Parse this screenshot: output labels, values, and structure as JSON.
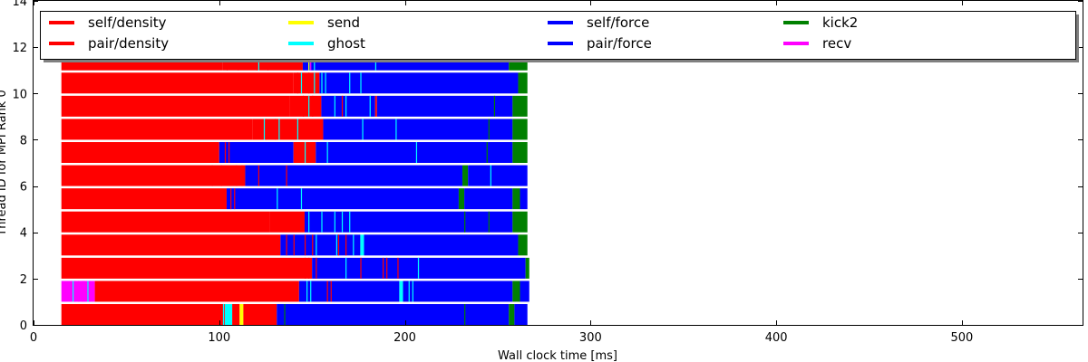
{
  "chart_data": {
    "type": "bar",
    "orientation": "horizontal-timeline",
    "title": "",
    "xlabel": "Wall clock time [ms]",
    "ylabel": "Thread ID for MPI Rank 0",
    "xlim": [
      0,
      565
    ],
    "ylim": [
      0,
      14
    ],
    "xticks": [
      0,
      100,
      200,
      300,
      400,
      500
    ],
    "yticks": [
      0,
      2,
      4,
      6,
      8,
      10,
      12,
      14
    ],
    "grid": false,
    "legend_position": "top, inside plot, 5 columns",
    "legend": [
      {
        "label": "self/density",
        "color": "#ff0000"
      },
      {
        "label": "pair/density",
        "color": "#ff0000"
      },
      {
        "label": "send",
        "color": "#ffff00"
      },
      {
        "label": "ghost",
        "color": "#00ffff"
      },
      {
        "label": "self/force",
        "color": "#0000ff"
      },
      {
        "label": "pair/force",
        "color": "#0000ff"
      },
      {
        "label": "kick2",
        "color": "#008000"
      },
      {
        "label": "recv",
        "color": "#ff00ff"
      }
    ],
    "threads": [
      {
        "id": 0,
        "segments": [
          {
            "task": "pair/density",
            "start": 15,
            "end": 103
          },
          {
            "task": "ghost",
            "start": 103,
            "end": 107
          },
          {
            "task": "self/density",
            "start": 107,
            "end": 111
          },
          {
            "task": "send",
            "start": 111,
            "end": 113
          },
          {
            "task": "self/density",
            "start": 113,
            "end": 131
          },
          {
            "task": "pair/force",
            "start": 131,
            "end": 256
          },
          {
            "task": "kick2",
            "start": 256,
            "end": 259
          },
          {
            "task": "self/force",
            "start": 259,
            "end": 266
          }
        ]
      },
      {
        "id": 1,
        "segments": [
          {
            "task": "recv",
            "start": 15,
            "end": 33
          },
          {
            "task": "pair/density",
            "start": 33,
            "end": 143
          },
          {
            "task": "pair/force",
            "start": 143,
            "end": 197
          },
          {
            "task": "ghost",
            "start": 197,
            "end": 199
          },
          {
            "task": "pair/force",
            "start": 199,
            "end": 258
          },
          {
            "task": "kick2",
            "start": 258,
            "end": 262
          },
          {
            "task": "pair/force",
            "start": 262,
            "end": 267
          }
        ]
      },
      {
        "id": 2,
        "segments": [
          {
            "task": "pair/density",
            "start": 15,
            "end": 150
          },
          {
            "task": "pair/force",
            "start": 150,
            "end": 208
          },
          {
            "task": "self/force",
            "start": 208,
            "end": 265
          },
          {
            "task": "kick2",
            "start": 265,
            "end": 267
          }
        ]
      },
      {
        "id": 3,
        "segments": [
          {
            "task": "pair/density",
            "start": 15,
            "end": 133
          },
          {
            "task": "pair/force",
            "start": 133,
            "end": 176
          },
          {
            "task": "ghost",
            "start": 176,
            "end": 178
          },
          {
            "task": "pair/force",
            "start": 178,
            "end": 261
          },
          {
            "task": "kick2",
            "start": 261,
            "end": 266
          }
        ]
      },
      {
        "id": 4,
        "segments": [
          {
            "task": "pair/density",
            "start": 15,
            "end": 127
          },
          {
            "task": "self/density",
            "start": 127,
            "end": 146
          },
          {
            "task": "pair/force",
            "start": 146,
            "end": 258
          },
          {
            "task": "kick2",
            "start": 258,
            "end": 266
          }
        ]
      },
      {
        "id": 5,
        "segments": [
          {
            "task": "pair/density",
            "start": 15,
            "end": 104
          },
          {
            "task": "pair/force",
            "start": 104,
            "end": 229
          },
          {
            "task": "kick2",
            "start": 229,
            "end": 232
          },
          {
            "task": "pair/force",
            "start": 232,
            "end": 258
          },
          {
            "task": "kick2",
            "start": 258,
            "end": 262
          },
          {
            "task": "pair/force",
            "start": 262,
            "end": 266
          }
        ]
      },
      {
        "id": 6,
        "segments": [
          {
            "task": "pair/density",
            "start": 15,
            "end": 114
          },
          {
            "task": "pair/force",
            "start": 114,
            "end": 231
          },
          {
            "task": "kick2",
            "start": 231,
            "end": 234
          },
          {
            "task": "pair/force",
            "start": 234,
            "end": 266
          }
        ]
      },
      {
        "id": 7,
        "segments": [
          {
            "task": "pair/density",
            "start": 15,
            "end": 100
          },
          {
            "task": "pair/force",
            "start": 100,
            "end": 140
          },
          {
            "task": "self/density",
            "start": 140,
            "end": 152
          },
          {
            "task": "pair/force",
            "start": 152,
            "end": 258
          },
          {
            "task": "kick2",
            "start": 258,
            "end": 266
          }
        ]
      },
      {
        "id": 8,
        "segments": [
          {
            "task": "pair/density",
            "start": 15,
            "end": 118
          },
          {
            "task": "self/density",
            "start": 118,
            "end": 156
          },
          {
            "task": "pair/force",
            "start": 156,
            "end": 258
          },
          {
            "task": "kick2",
            "start": 258,
            "end": 266
          }
        ]
      },
      {
        "id": 9,
        "segments": [
          {
            "task": "pair/density",
            "start": 15,
            "end": 138
          },
          {
            "task": "self/density",
            "start": 138,
            "end": 155
          },
          {
            "task": "pair/force",
            "start": 155,
            "end": 184
          },
          {
            "task": "self/density",
            "start": 184,
            "end": 185
          },
          {
            "task": "pair/force",
            "start": 185,
            "end": 258
          },
          {
            "task": "kick2",
            "start": 258,
            "end": 266
          }
        ]
      },
      {
        "id": 10,
        "segments": [
          {
            "task": "pair/density",
            "start": 15,
            "end": 140
          },
          {
            "task": "self/density",
            "start": 140,
            "end": 154
          },
          {
            "task": "pair/force",
            "start": 154,
            "end": 261
          },
          {
            "task": "kick2",
            "start": 261,
            "end": 266
          }
        ]
      },
      {
        "id": 11,
        "segments": [
          {
            "task": "pair/density",
            "start": 15,
            "end": 102
          },
          {
            "task": "self/density",
            "start": 102,
            "end": 145
          },
          {
            "task": "pair/force",
            "start": 145,
            "end": 256
          },
          {
            "task": "kick2",
            "start": 256,
            "end": 266
          }
        ]
      }
    ],
    "thin_events": [
      {
        "thread": 0,
        "task": "ghost",
        "times": [
          102,
          104,
          105
        ]
      },
      {
        "thread": 0,
        "task": "kick2",
        "times": [
          135,
          232
        ]
      },
      {
        "thread": 1,
        "task": "ghost",
        "times": [
          21,
          29,
          147,
          149,
          202,
          204
        ]
      },
      {
        "thread": 1,
        "task": "recv",
        "times": [
          22,
          24,
          26,
          27,
          30
        ]
      },
      {
        "thread": 1,
        "task": "self/density",
        "times": [
          158,
          160
        ]
      },
      {
        "thread": 2,
        "task": "self/density",
        "times": [
          146,
          148,
          152,
          176,
          188,
          190,
          196
        ]
      },
      {
        "thread": 2,
        "task": "ghost",
        "times": [
          168,
          207
        ]
      },
      {
        "thread": 3,
        "task": "self/density",
        "times": [
          136,
          140,
          146,
          150,
          164,
          168
        ]
      },
      {
        "thread": 3,
        "task": "ghost",
        "times": [
          152,
          163,
          172
        ]
      },
      {
        "thread": 4,
        "task": "ghost",
        "times": [
          148,
          155,
          162,
          166,
          170
        ]
      },
      {
        "thread": 4,
        "task": "kick2",
        "times": [
          232,
          245
        ]
      },
      {
        "thread": 5,
        "task": "self/density",
        "times": [
          106,
          108
        ]
      },
      {
        "thread": 5,
        "task": "ghost",
        "times": [
          131,
          144
        ]
      },
      {
        "thread": 6,
        "task": "self/density",
        "times": [
          96,
          101,
          109,
          112,
          121,
          136
        ]
      },
      {
        "thread": 6,
        "task": "ghost",
        "times": [
          246
        ]
      },
      {
        "thread": 7,
        "task": "self/density",
        "times": [
          103,
          105
        ]
      },
      {
        "thread": 7,
        "task": "ghost",
        "times": [
          146,
          158,
          206
        ]
      },
      {
        "thread": 7,
        "task": "kick2",
        "times": [
          244
        ]
      },
      {
        "thread": 8,
        "task": "self/density",
        "times": [
          125,
          130
        ]
      },
      {
        "thread": 8,
        "task": "ghost",
        "times": [
          124,
          132,
          142,
          177,
          195
        ]
      },
      {
        "thread": 8,
        "task": "kick2",
        "times": [
          245
        ]
      },
      {
        "thread": 9,
        "task": "ghost",
        "times": [
          148,
          162,
          168,
          181
        ]
      },
      {
        "thread": 9,
        "task": "self/density",
        "times": [
          145,
          150,
          166
        ]
      },
      {
        "thread": 9,
        "task": "kick2",
        "times": [
          248
        ]
      },
      {
        "thread": 10,
        "task": "ghost",
        "times": [
          144,
          151,
          155,
          157,
          170,
          176
        ]
      },
      {
        "thread": 10,
        "task": "self/density",
        "times": [
          142,
          148
        ]
      },
      {
        "thread": 11,
        "task": "self/density",
        "times": [
          104,
          110,
          120,
          126
        ]
      },
      {
        "thread": 11,
        "task": "ghost",
        "times": [
          121,
          148,
          151,
          184
        ]
      },
      {
        "thread": 11,
        "task": "send",
        "times": [
          148
        ]
      },
      {
        "thread": 11,
        "task": "recv",
        "times": [
          149
        ]
      }
    ]
  }
}
